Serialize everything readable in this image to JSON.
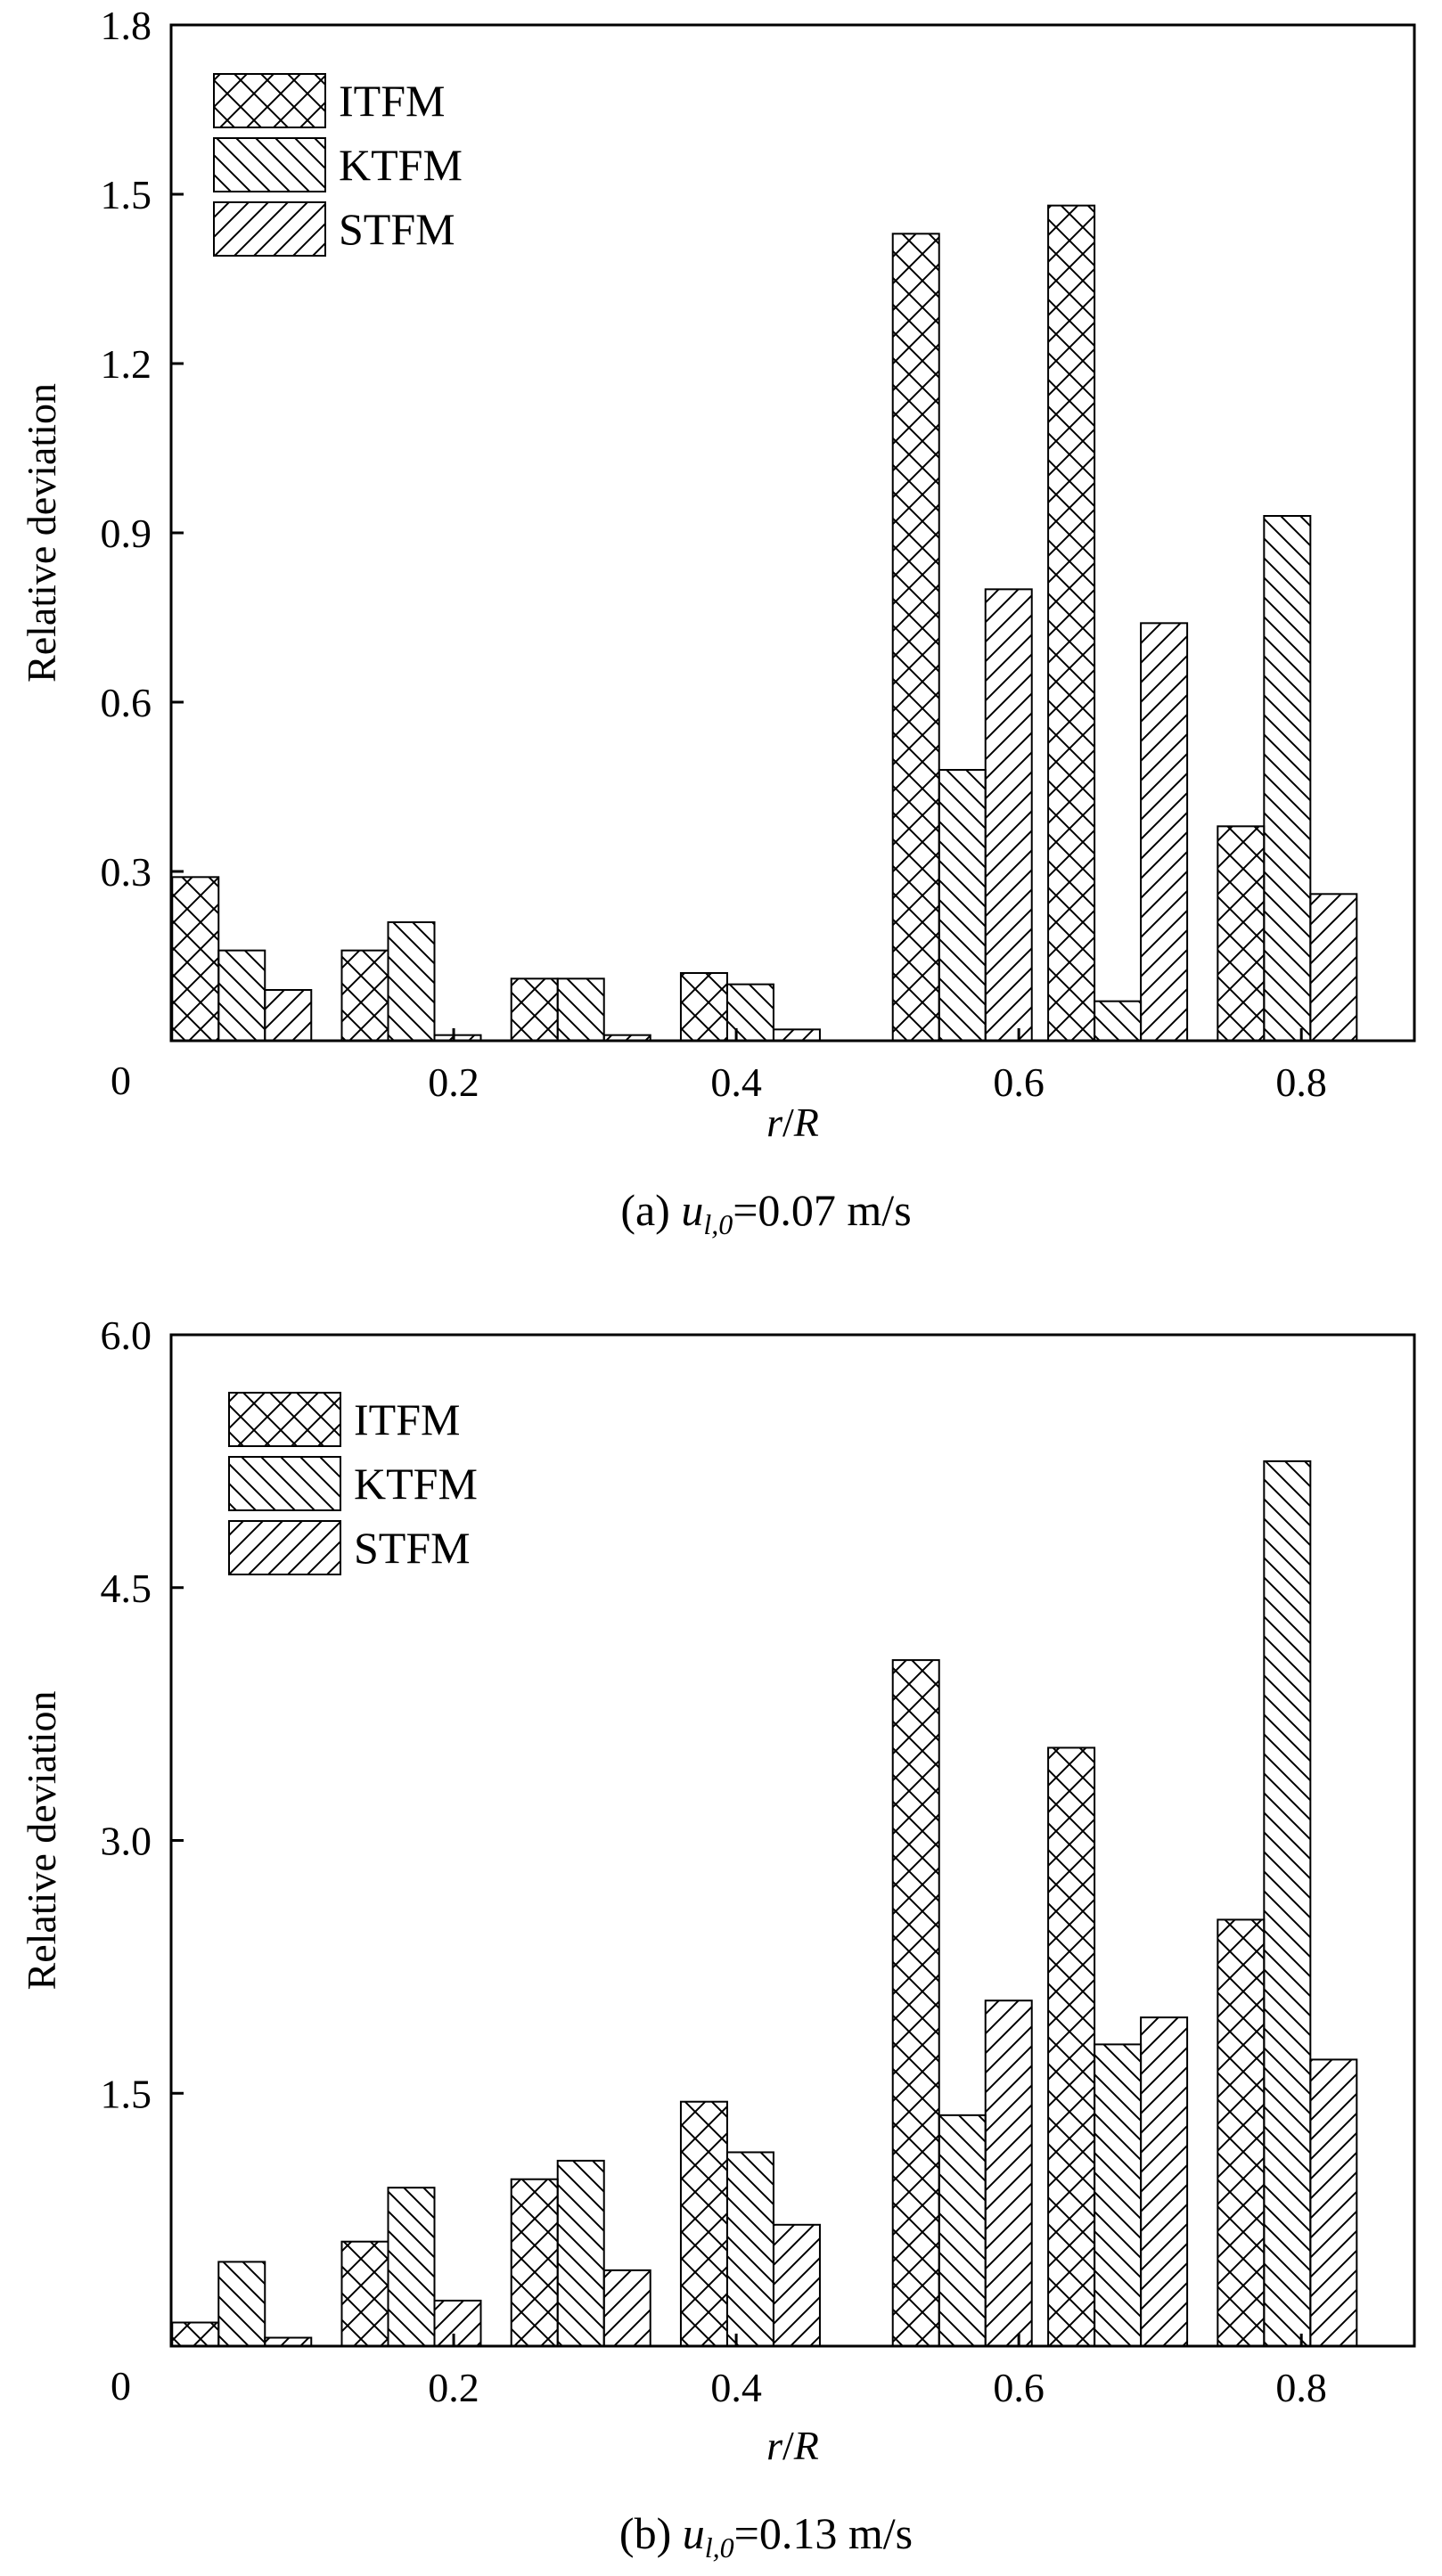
{
  "chart_data": [
    {
      "type": "bar",
      "caption": {
        "prefix": "(a) ",
        "var": "u",
        "sub": "l,0",
        "suffix": "=0.07 m/s"
      },
      "xlabel": {
        "r": "r",
        "slash": "/",
        "R": "R"
      },
      "ylabel": "Relative deviation",
      "x": [
        0.05,
        0.17,
        0.29,
        0.41,
        0.56,
        0.67,
        0.79
      ],
      "xlim": [
        0,
        0.88
      ],
      "ylim": [
        0,
        1.8
      ],
      "xticks": [
        0.2,
        0.4,
        0.6,
        0.8
      ],
      "xtick_labels": [
        "0.2",
        "0.4",
        "0.6",
        "0.8"
      ],
      "yticks": [
        0,
        0.3,
        0.6,
        0.9,
        1.2,
        1.5,
        1.8
      ],
      "ytick_labels": [
        "0",
        "0.3",
        "0.6",
        "0.9",
        "1.2",
        "1.5",
        "1.8"
      ],
      "series": [
        {
          "name": "ITFM",
          "pattern": "cross",
          "values": [
            0.29,
            0.16,
            0.11,
            0.12,
            1.43,
            1.48,
            0.38
          ]
        },
        {
          "name": "KTFM",
          "pattern": "backslash",
          "values": [
            0.16,
            0.21,
            0.11,
            0.1,
            0.48,
            0.07,
            0.93
          ]
        },
        {
          "name": "STFM",
          "pattern": "slash",
          "values": [
            0.09,
            0.01,
            0.01,
            0.02,
            0.8,
            0.74,
            0.26
          ]
        }
      ],
      "legend": "top-left",
      "grid": false
    },
    {
      "type": "bar",
      "caption": {
        "prefix": "(b) ",
        "var": "u",
        "sub": "l,0",
        "suffix": "=0.13 m/s"
      },
      "xlabel": {
        "r": "r",
        "slash": "/",
        "R": "R"
      },
      "ylabel": "Relative deviation",
      "x": [
        0.05,
        0.17,
        0.29,
        0.41,
        0.56,
        0.67,
        0.79
      ],
      "xlim": [
        0,
        0.88
      ],
      "ylim": [
        0,
        6.0
      ],
      "xticks": [
        0.2,
        0.4,
        0.6,
        0.8
      ],
      "xtick_labels": [
        "0.2",
        "0.4",
        "0.6",
        "0.8"
      ],
      "yticks": [
        0,
        1.5,
        3.0,
        4.5,
        6.0
      ],
      "ytick_labels": [
        "0",
        "1.5",
        "3.0",
        "4.5",
        "6.0"
      ],
      "series": [
        {
          "name": "ITFM",
          "pattern": "cross",
          "values": [
            0.14,
            0.62,
            0.99,
            1.45,
            4.07,
            3.55,
            2.53
          ]
        },
        {
          "name": "KTFM",
          "pattern": "backslash",
          "values": [
            0.5,
            0.94,
            1.1,
            1.15,
            1.37,
            1.79,
            5.25
          ]
        },
        {
          "name": "STFM",
          "pattern": "slash",
          "values": [
            0.05,
            0.27,
            0.45,
            0.72,
            2.05,
            1.95,
            1.7
          ]
        }
      ],
      "legend": "top-left",
      "grid": false
    }
  ]
}
